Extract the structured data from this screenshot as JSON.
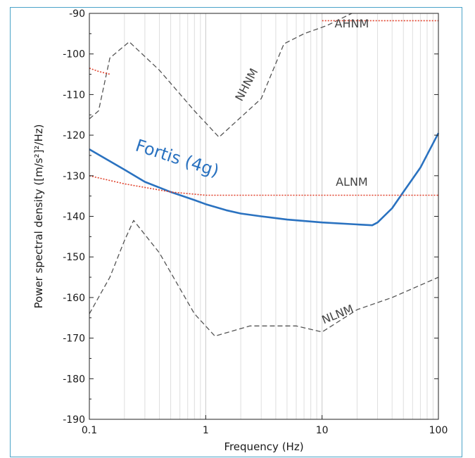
{
  "chart_data": {
    "type": "line",
    "title": "",
    "xlabel": "Frequency (Hz)",
    "ylabel": "Power spectral density ([m/s²]²/Hz)",
    "xscale": "log",
    "xlim": [
      0.1,
      100
    ],
    "ylim": [
      -190,
      -90
    ],
    "x_ticks": [
      0.1,
      1,
      10,
      100
    ],
    "x_tick_labels": [
      "0.1",
      "1",
      "10",
      "100"
    ],
    "y_ticks": [
      -90,
      -100,
      -110,
      -120,
      -130,
      -140,
      -150,
      -160,
      -170,
      -180,
      -190
    ],
    "y_tick_labels": [
      "-90",
      "-100",
      "-110",
      "-120",
      "-130",
      "-140",
      "-150",
      "-160",
      "-170",
      "-180",
      "-190"
    ],
    "grid": true,
    "series": [
      {
        "name": "Fortis (4g)",
        "color": "#2a72c0",
        "style": "solid",
        "x": [
          0.1,
          0.2,
          0.3,
          0.5,
          0.8,
          1.0,
          1.5,
          2.0,
          3.0,
          5.0,
          10,
          20,
          27,
          30,
          40,
          50,
          70,
          100
        ],
        "y": [
          -123.5,
          -128.5,
          -131.5,
          -134,
          -136,
          -137,
          -138.5,
          -139.3,
          -140,
          -140.8,
          -141.5,
          -142,
          -142.2,
          -141.5,
          -138,
          -134,
          -128,
          -119.5
        ]
      },
      {
        "name": "NHNM",
        "color": "#555555",
        "style": "dashed",
        "x": [
          0.1,
          0.12,
          0.15,
          0.22,
          0.4,
          0.8,
          1.3,
          3.0,
          4.7,
          7.0,
          11,
          18
        ],
        "y": [
          -116,
          -114,
          -101,
          -97,
          -104,
          -114,
          -120.5,
          -111,
          -97.5,
          -95,
          -93,
          -90
        ]
      },
      {
        "name": "NLNM",
        "color": "#555555",
        "style": "dashed",
        "x": [
          0.1,
          0.15,
          0.2,
          0.24,
          0.4,
          0.8,
          1.2,
          2.4,
          6.0,
          10,
          20,
          40,
          100
        ],
        "y": [
          -164,
          -155,
          -146,
          -141,
          -149,
          -164,
          -169.5,
          -167,
          -167,
          -168.5,
          -163,
          -160,
          -155
        ]
      },
      {
        "name": "AHNM",
        "color": "#e0402a",
        "style": "dotted",
        "x": [
          0.1,
          0.12,
          0.15
        ],
        "y": [
          -103.5,
          -104.3,
          -105
        ]
      },
      {
        "name": "AHNM",
        "color": "#e0402a",
        "style": "dotted",
        "x": [
          10,
          20,
          50,
          100
        ],
        "y": [
          -91.8,
          -91.8,
          -91.8,
          -91.8
        ]
      },
      {
        "name": "ALNM",
        "color": "#e0402a",
        "style": "dotted",
        "x": [
          0.1,
          0.2,
          0.5,
          1.0,
          2.0,
          10,
          100
        ],
        "y": [
          -130,
          -132,
          -134,
          -134.8,
          -134.8,
          -134.8,
          -134.8
        ]
      }
    ],
    "annotations": [
      {
        "text": "AHNM",
        "x": 18,
        "y": -93.5,
        "rotate": 0,
        "kind": "curve-label"
      },
      {
        "text": "NHNM",
        "x": 2.4,
        "y": -108,
        "rotate": -62,
        "kind": "curve-label"
      },
      {
        "text": "ALNM",
        "x": 18,
        "y": -132.5,
        "rotate": 0,
        "kind": "curve-label"
      },
      {
        "text": "NLNM",
        "x": 14,
        "y": -165,
        "rotate": -22,
        "kind": "curve-label"
      },
      {
        "text": "Fortis (4g)",
        "x": 0.55,
        "y": -127,
        "rotate": 18,
        "kind": "series-label"
      }
    ]
  }
}
